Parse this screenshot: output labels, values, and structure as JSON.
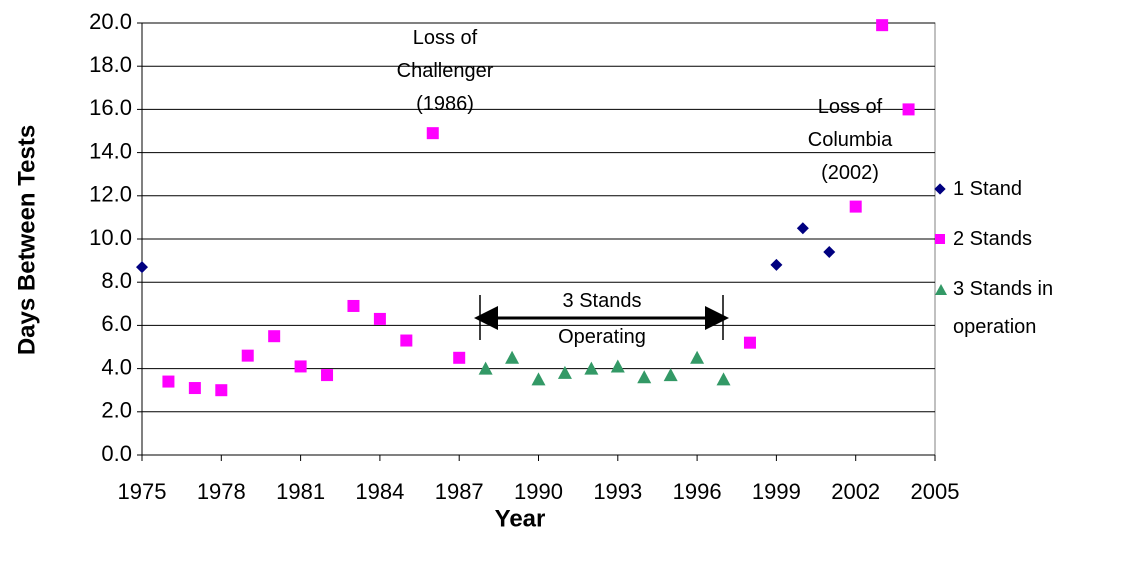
{
  "chart_data": {
    "type": "scatter",
    "xlabel": "Year",
    "ylabel": "Days Between Tests",
    "xlim": [
      1975,
      2005
    ],
    "xticks": [
      1975,
      1978,
      1981,
      1984,
      1987,
      1990,
      1993,
      1996,
      1999,
      2002,
      2005
    ],
    "ylim": [
      0,
      20
    ],
    "yticks": [
      {
        "value": 0,
        "label": "0.0"
      },
      {
        "value": 2,
        "label": "2.0"
      },
      {
        "value": 4,
        "label": "4.0"
      },
      {
        "value": 6,
        "label": "6.0"
      },
      {
        "value": 8,
        "label": "8.0"
      },
      {
        "value": 10,
        "label": "10.0"
      },
      {
        "value": 12,
        "label": "12.0"
      },
      {
        "value": 14,
        "label": "14.0"
      },
      {
        "value": 16,
        "label": "16.0"
      },
      {
        "value": 18,
        "label": "18.0"
      },
      {
        "value": 20,
        "label": "20.0"
      }
    ],
    "grid": true,
    "legend": "right",
    "series": [
      {
        "name": "1 Stand",
        "color": "#000080",
        "marker": "diamond",
        "x": [
          1975,
          1999,
          2000,
          2001
        ],
        "values": [
          8.7,
          8.8,
          10.5,
          9.4
        ]
      },
      {
        "name": "2 Stands",
        "color": "#ff00ff",
        "marker": "square",
        "x": [
          1976,
          1977,
          1978,
          1979,
          1980,
          1981,
          1982,
          1983,
          1984,
          1985,
          1986,
          1987,
          1998,
          2002,
          2003,
          2004
        ],
        "values": [
          3.4,
          3.1,
          3.0,
          4.6,
          5.5,
          4.1,
          3.7,
          6.9,
          6.3,
          5.3,
          14.9,
          4.5,
          5.2,
          11.5,
          19.9,
          16.0
        ]
      },
      {
        "name": "3 Stands in operation",
        "color": "#339966",
        "marker": "triangle",
        "x": [
          1988,
          1989,
          1990,
          1991,
          1992,
          1993,
          1994,
          1995,
          1996,
          1997
        ],
        "values": [
          4.0,
          4.5,
          3.5,
          3.8,
          4.0,
          4.1,
          3.6,
          3.7,
          4.5,
          3.5
        ]
      }
    ],
    "annotations": [
      "Loss of Challenger (1986)",
      "Loss of Columbia (2002)",
      "3 Stands Operating"
    ]
  }
}
